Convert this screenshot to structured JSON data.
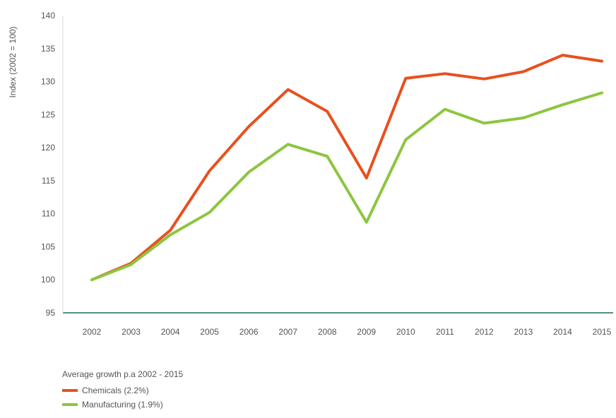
{
  "chart_data": {
    "type": "line",
    "title": "",
    "xlabel": "",
    "ylabel": "Index (2002 = 100)",
    "x": [
      "2002",
      "2003",
      "2004",
      "2005",
      "2006",
      "2007",
      "2008",
      "2009",
      "2010",
      "2011",
      "2012",
      "2013",
      "2014",
      "2015"
    ],
    "ylim": [
      95,
      140
    ],
    "yticks": [
      95,
      100,
      105,
      110,
      115,
      120,
      125,
      130,
      135,
      140
    ],
    "grid": false,
    "legend_title": "Average growth p.a 2002 - 2015",
    "legend_position": "bottom-left",
    "series": [
      {
        "name": "Chemicals (2.2%)",
        "color": "#e8501e",
        "values": [
          100,
          102.5,
          107.5,
          116.5,
          123.2,
          128.8,
          125.5,
          115.4,
          130.5,
          131.2,
          130.4,
          131.5,
          134.0,
          133.1
        ]
      },
      {
        "name": "Manufacturing (1.9%)",
        "color": "#8cc63f",
        "values": [
          100,
          102.3,
          106.8,
          110.2,
          116.3,
          120.5,
          118.7,
          108.7,
          121.2,
          125.8,
          123.7,
          124.5,
          126.5,
          128.3
        ]
      }
    ]
  }
}
